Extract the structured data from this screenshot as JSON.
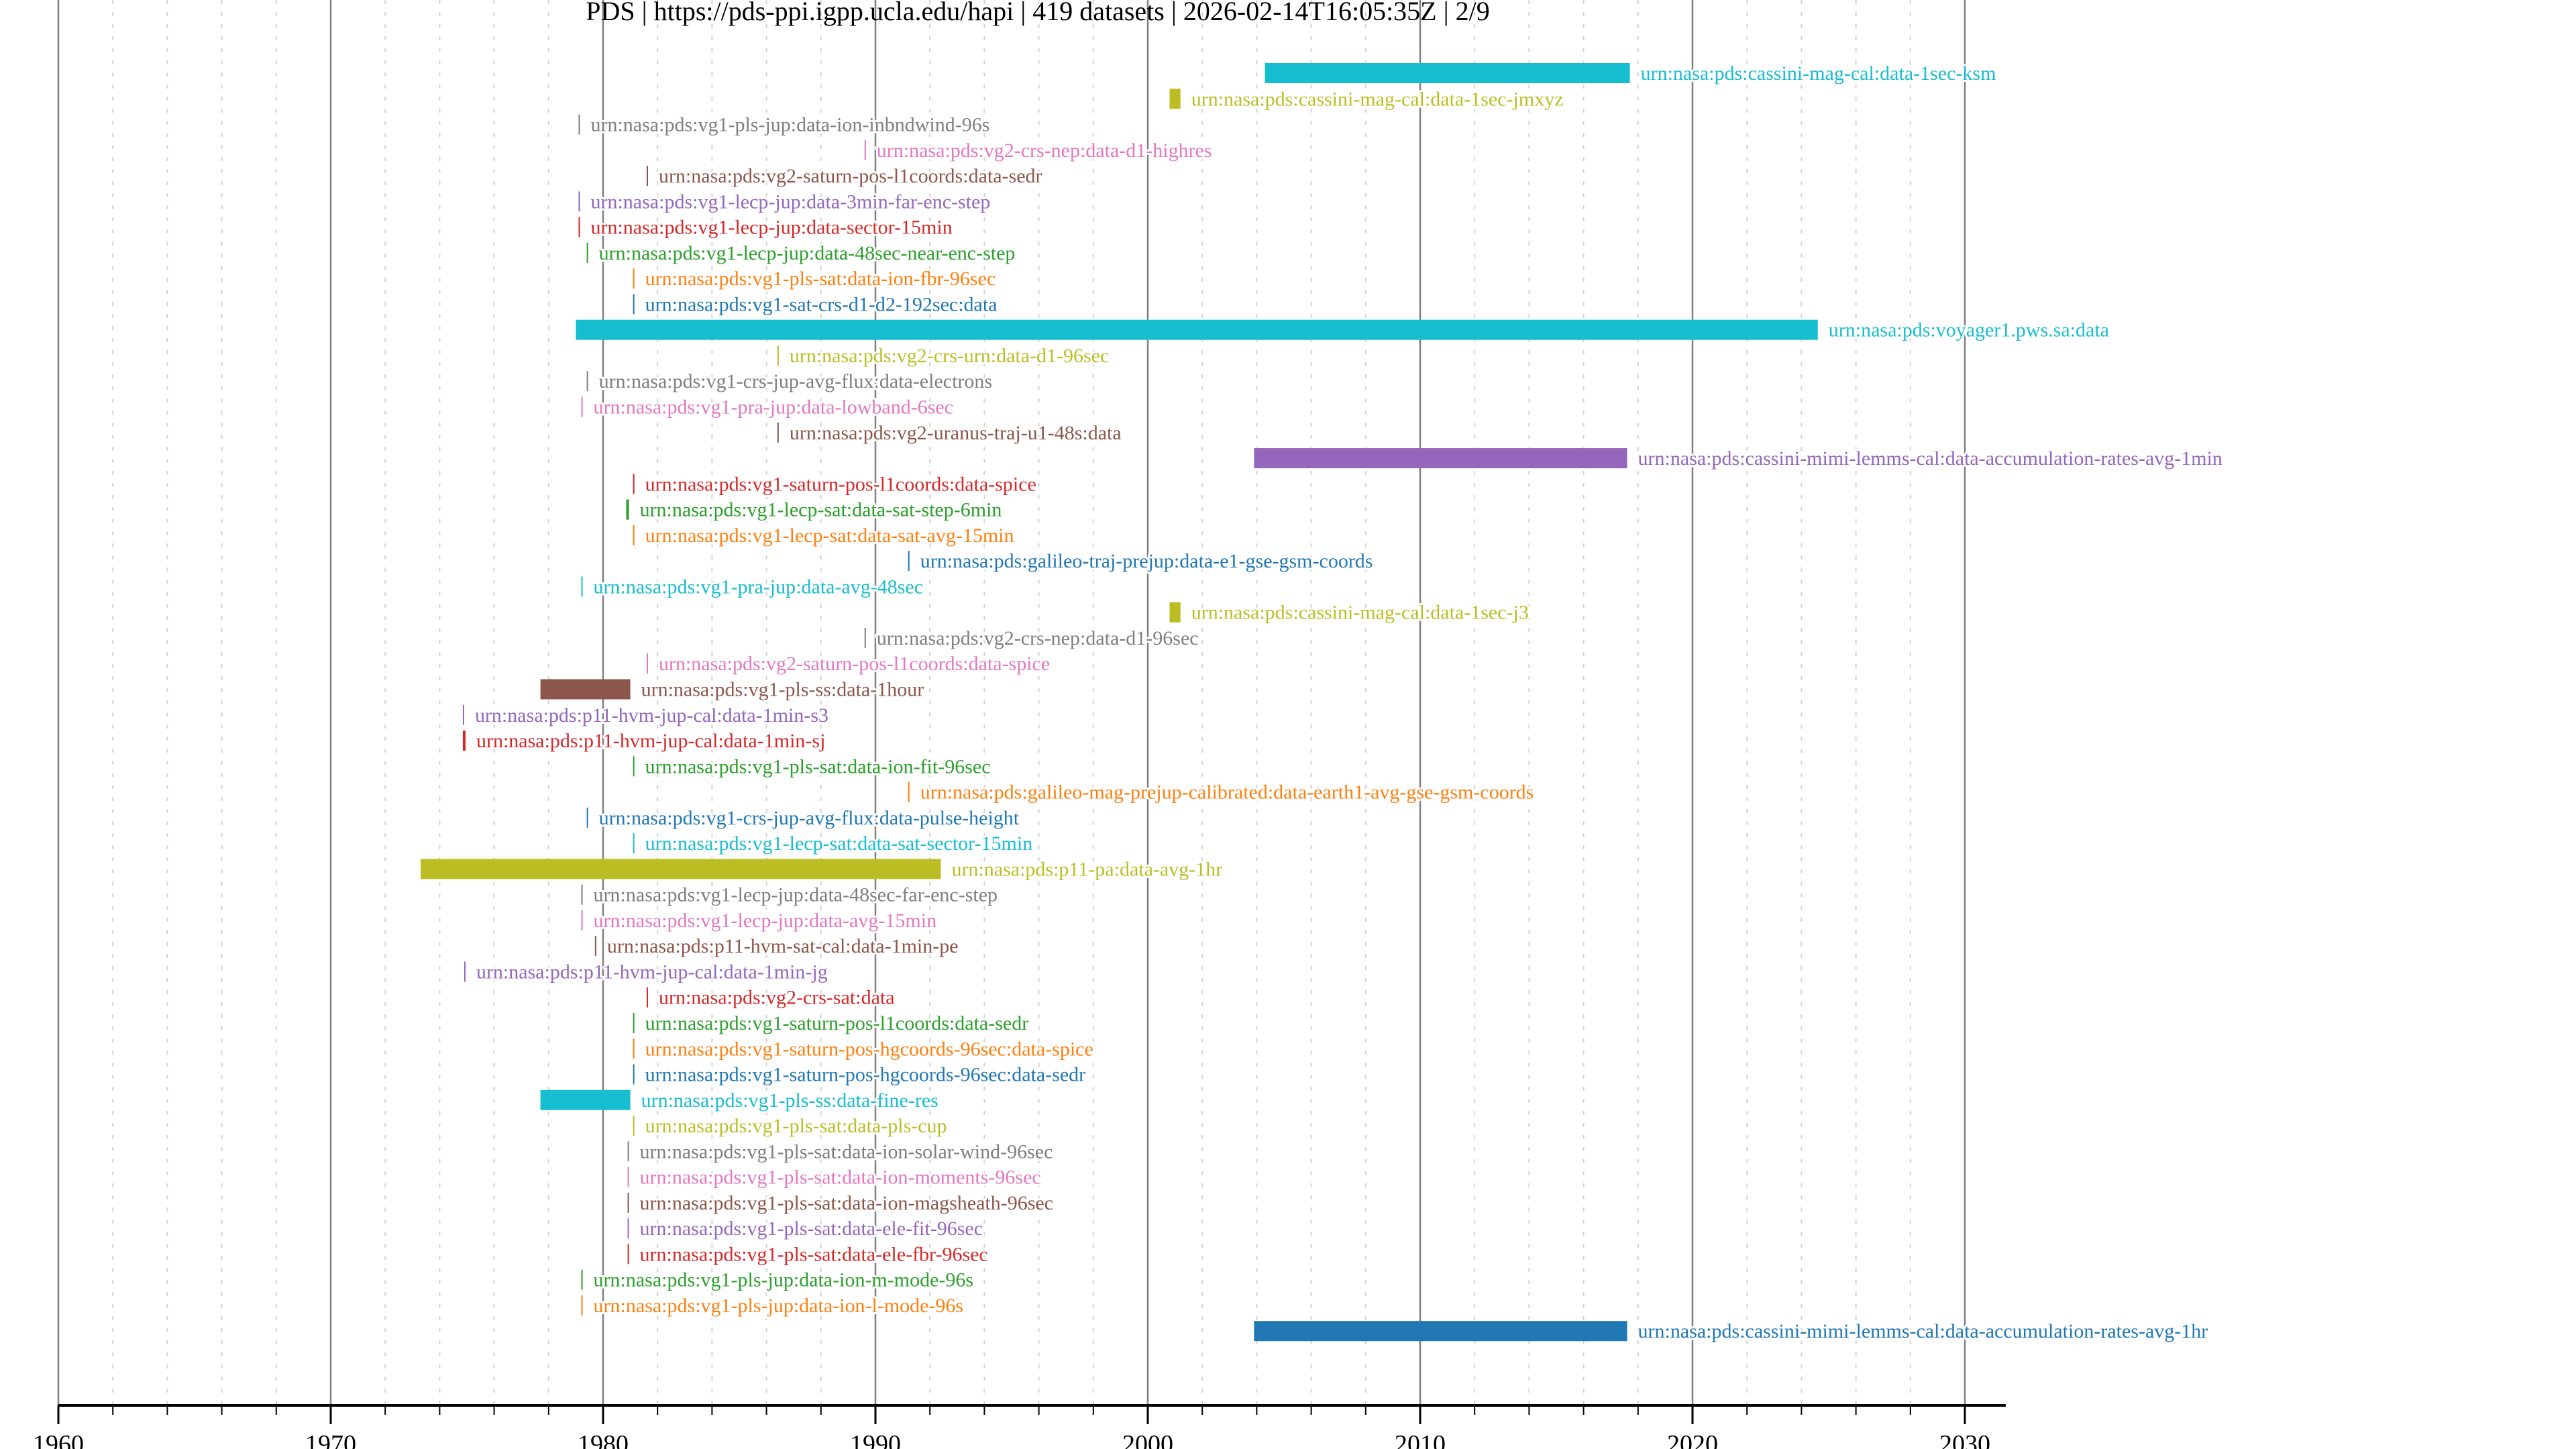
{
  "chart_data": {
    "type": "timeline",
    "title": "PDS | https://pds-ppi.igpp.ucla.edu/hapi | 419 datasets | 2026-02-14T16:05:35Z | 2/9",
    "xlabel": "",
    "ylabel": "",
    "xlim": [
      1960,
      2031.5
    ],
    "x_ticks": [
      1960,
      1970,
      1980,
      1990,
      2000,
      2010,
      2020,
      2030
    ],
    "x_tick_labels": [
      "1960",
      "1970",
      "1980",
      "1990",
      "2000",
      "2010",
      "2020",
      "2030"
    ],
    "x_minor_step_years": 2,
    "grid": true,
    "palette": [
      "#1f77b4",
      "#ff7f0e",
      "#2ca02c",
      "#d62728",
      "#9467bd",
      "#8c564b",
      "#e377c2",
      "#7f7f7f",
      "#bcbd22",
      "#17becf"
    ],
    "series": [
      {
        "name": "urn:nasa:pds:cassini-mag-cal:data-1sec-ksm",
        "start": 2004.3,
        "end": 2017.7
      },
      {
        "name": "urn:nasa:pds:cassini-mag-cal:data-1sec-jmxyz",
        "start": 2000.8,
        "end": 2001.2
      },
      {
        "name": "urn:nasa:pds:vg1-pls-jup:data-ion-inbndwind-96s",
        "start": 1979.1,
        "end": 1979.15
      },
      {
        "name": "urn:nasa:pds:vg2-crs-nep:data-d1-highres",
        "start": 1989.6,
        "end": 1989.6
      },
      {
        "name": "urn:nasa:pds:vg2-saturn-pos-l1coords:data-sedr",
        "start": 1981.6,
        "end": 1981.65
      },
      {
        "name": "urn:nasa:pds:vg1-lecp-jup:data-3min-far-enc-step",
        "start": 1979.1,
        "end": 1979.15
      },
      {
        "name": "urn:nasa:pds:vg1-lecp-jup:data-sector-15min",
        "start": 1979.1,
        "end": 1979.15
      },
      {
        "name": "urn:nasa:pds:vg1-lecp-jup:data-48sec-near-enc-step",
        "start": 1979.4,
        "end": 1979.4
      },
      {
        "name": "urn:nasa:pds:vg1-pls-sat:data-ion-fbr-96sec",
        "start": 1981.1,
        "end": 1981.1
      },
      {
        "name": "urn:nasa:pds:vg1-sat-crs-d1-d2-192sec:data",
        "start": 1981.1,
        "end": 1981.1
      },
      {
        "name": "urn:nasa:pds:voyager1.pws.sa:data",
        "start": 1979.0,
        "end": 2024.6
      },
      {
        "name": "urn:nasa:pds:vg2-crs-urn:data-d1-96sec",
        "start": 1986.4,
        "end": 1986.4
      },
      {
        "name": "urn:nasa:pds:vg1-crs-jup-avg-flux:data-electrons",
        "start": 1979.4,
        "end": 1979.4
      },
      {
        "name": "urn:nasa:pds:vg1-pra-jup:data-lowband-6sec",
        "start": 1979.2,
        "end": 1979.2
      },
      {
        "name": "urn:nasa:pds:vg2-uranus-traj-u1-48s:data",
        "start": 1986.4,
        "end": 1986.4
      },
      {
        "name": "urn:nasa:pds:cassini-mimi-lemms-cal:data-accumulation-rates-avg-1min",
        "start": 2003.9,
        "end": 2017.6
      },
      {
        "name": "urn:nasa:pds:vg1-saturn-pos-l1coords:data-spice",
        "start": 1981.1,
        "end": 1981.1
      },
      {
        "name": "urn:nasa:pds:vg1-lecp-sat:data-sat-step-6min",
        "start": 1980.85,
        "end": 1980.95
      },
      {
        "name": "urn:nasa:pds:vg1-lecp-sat:data-sat-avg-15min",
        "start": 1981.1,
        "end": 1981.1
      },
      {
        "name": "urn:nasa:pds:galileo-traj-prejup:data-e1-gse-gsm-coords",
        "start": 1991.2,
        "end": 1991.2
      },
      {
        "name": "urn:nasa:pds:vg1-pra-jup:data-avg-48sec",
        "start": 1979.2,
        "end": 1979.2
      },
      {
        "name": "urn:nasa:pds:cassini-mag-cal:data-1sec-j3",
        "start": 2000.8,
        "end": 2001.2
      },
      {
        "name": "urn:nasa:pds:vg2-crs-nep:data-d1-96sec",
        "start": 1989.6,
        "end": 1989.6
      },
      {
        "name": "urn:nasa:pds:vg2-saturn-pos-l1coords:data-spice",
        "start": 1981.6,
        "end": 1981.65
      },
      {
        "name": "urn:nasa:pds:vg1-pls-ss:data-1hour",
        "start": 1977.7,
        "end": 1981.0
      },
      {
        "name": "urn:nasa:pds:p11-hvm-jup-cal:data-1min-s3",
        "start": 1974.85,
        "end": 1974.9
      },
      {
        "name": "urn:nasa:pds:p11-hvm-jup-cal:data-1min-sj",
        "start": 1974.85,
        "end": 1974.95
      },
      {
        "name": "urn:nasa:pds:vg1-pls-sat:data-ion-fit-96sec",
        "start": 1981.1,
        "end": 1981.1
      },
      {
        "name": "urn:nasa:pds:galileo-mag-prejup-calibrated:data-earth1-avg-gse-gsm-coords",
        "start": 1991.2,
        "end": 1991.2
      },
      {
        "name": "urn:nasa:pds:vg1-crs-jup-avg-flux:data-pulse-height",
        "start": 1979.4,
        "end": 1979.4
      },
      {
        "name": "urn:nasa:pds:vg1-lecp-sat:data-sat-sector-15min",
        "start": 1981.1,
        "end": 1981.1
      },
      {
        "name": "urn:nasa:pds:p11-pa:data-avg-1hr",
        "start": 1973.3,
        "end": 1992.4
      },
      {
        "name": "urn:nasa:pds:vg1-lecp-jup:data-48sec-far-enc-step",
        "start": 1979.2,
        "end": 1979.25
      },
      {
        "name": "urn:nasa:pds:vg1-lecp-jup:data-avg-15min",
        "start": 1979.2,
        "end": 1979.25
      },
      {
        "name": "urn:nasa:pds:p11-hvm-sat-cal:data-1min-pe",
        "start": 1979.7,
        "end": 1979.75
      },
      {
        "name": "urn:nasa:pds:p11-hvm-jup-cal:data-1min-jg",
        "start": 1974.9,
        "end": 1974.9
      },
      {
        "name": "urn:nasa:pds:vg2-crs-sat:data",
        "start": 1981.6,
        "end": 1981.65
      },
      {
        "name": "urn:nasa:pds:vg1-saturn-pos-l1coords:data-sedr",
        "start": 1981.1,
        "end": 1981.1
      },
      {
        "name": "urn:nasa:pds:vg1-saturn-pos-hgcoords-96sec:data-spice",
        "start": 1981.1,
        "end": 1981.1
      },
      {
        "name": "urn:nasa:pds:vg1-saturn-pos-hgcoords-96sec:data-sedr",
        "start": 1981.1,
        "end": 1981.1
      },
      {
        "name": "urn:nasa:pds:vg1-pls-ss:data-fine-res",
        "start": 1977.7,
        "end": 1981.0
      },
      {
        "name": "urn:nasa:pds:vg1-pls-sat:data-pls-cup",
        "start": 1981.1,
        "end": 1981.1
      },
      {
        "name": "urn:nasa:pds:vg1-pls-sat:data-ion-solar-wind-96sec",
        "start": 1980.9,
        "end": 1980.9
      },
      {
        "name": "urn:nasa:pds:vg1-pls-sat:data-ion-moments-96sec",
        "start": 1980.9,
        "end": 1980.9
      },
      {
        "name": "urn:nasa:pds:vg1-pls-sat:data-ion-magsheath-96sec",
        "start": 1980.9,
        "end": 1980.9
      },
      {
        "name": "urn:nasa:pds:vg1-pls-sat:data-ele-fit-96sec",
        "start": 1980.9,
        "end": 1980.9
      },
      {
        "name": "urn:nasa:pds:vg1-pls-sat:data-ele-fbr-96sec",
        "start": 1980.9,
        "end": 1980.9
      },
      {
        "name": "urn:nasa:pds:vg1-pls-jup:data-ion-m-mode-96s",
        "start": 1979.2,
        "end": 1979.22
      },
      {
        "name": "urn:nasa:pds:vg1-pls-jup:data-ion-l-mode-96s",
        "start": 1979.2,
        "end": 1979.25
      },
      {
        "name": "urn:nasa:pds:cassini-mimi-lemms-cal:data-accumulation-rates-avg-1hr",
        "start": 2003.9,
        "end": 2017.6
      }
    ]
  }
}
